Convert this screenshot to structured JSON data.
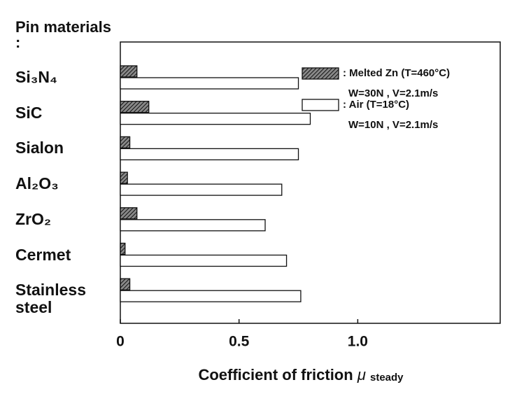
{
  "chart_data": {
    "type": "hbar",
    "ylabel": "Pin materials :",
    "xlabel": "Coefficient of friction",
    "xlabel_symbol": "μ",
    "xlabel_subscript": "steady",
    "categories": [
      "Si₃N₄",
      "SiC",
      "Sialon",
      "Al₂O₃",
      "ZrO₂",
      "Cermet",
      "Stainless steel"
    ],
    "series": [
      {
        "name": ": Melted Zn (T=460°C)",
        "conditions": "W=30N , V=2.1m/s",
        "color": "#555555",
        "pattern": "hatch",
        "values": [
          0.07,
          0.12,
          0.04,
          0.03,
          0.07,
          0.02,
          0.04
        ]
      },
      {
        "name": ": Air (T=18°C)",
        "conditions": "W=10N , V=2.1m/s",
        "color": "#ffffff",
        "pattern": "none",
        "values": [
          0.75,
          0.8,
          0.75,
          0.68,
          0.61,
          0.7,
          0.76
        ]
      }
    ],
    "xlim": [
      0,
      1.6
    ],
    "xticks": [
      0,
      0.5,
      {
        "value": 1,
        "label": "1.0"
      }
    ],
    "grid": false
  }
}
